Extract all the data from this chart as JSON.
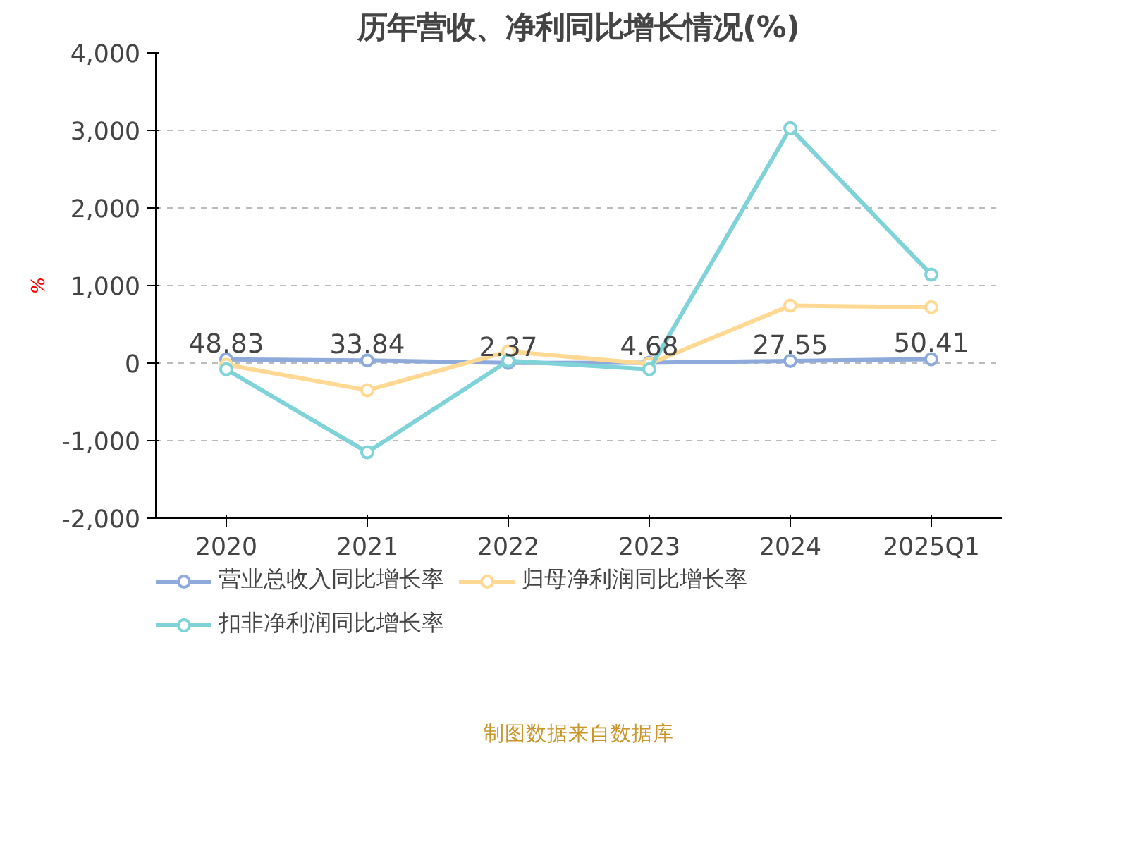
{
  "chart_data": {
    "type": "line",
    "title": "历年营收、净利同比增长情况(%)",
    "ylabel": "%",
    "categories": [
      "2020",
      "2021",
      "2022",
      "2023",
      "2024",
      "2025Q1"
    ],
    "series": [
      {
        "name": "营业总收入同比增长率",
        "color": "#8eaadb",
        "values": [
          48.83,
          33.84,
          2.37,
          4.68,
          27.55,
          50.41
        ],
        "value_labels": [
          "48.83",
          "33.84",
          "2.37",
          "4.68",
          "27.55",
          "50.41"
        ]
      },
      {
        "name": "归母净利润同比增长率",
        "color": "#ffd993",
        "values": [
          -20,
          -350,
          150,
          -10,
          740,
          720
        ]
      },
      {
        "name": "扣非净利润同比增长率",
        "color": "#7fd3d8",
        "values": [
          -80,
          -1150,
          30,
          -80,
          3030,
          1140
        ]
      }
    ],
    "ylim": [
      -2000,
      4000
    ],
    "yticks": [
      {
        "value": -2000,
        "label": "-2,000"
      },
      {
        "value": -1000,
        "label": "-1,000"
      },
      0,
      {
        "value": 1000,
        "label": "1,000"
      },
      {
        "value": 2000,
        "label": "2,000"
      },
      {
        "value": 3000,
        "label": "3,000"
      },
      {
        "value": 4000,
        "label": "4,000"
      }
    ],
    "grid": "y",
    "legend": "bottom",
    "marker": "circle",
    "line_style": "solid",
    "annotations": [
      "制图数据来自数据库"
    ]
  }
}
